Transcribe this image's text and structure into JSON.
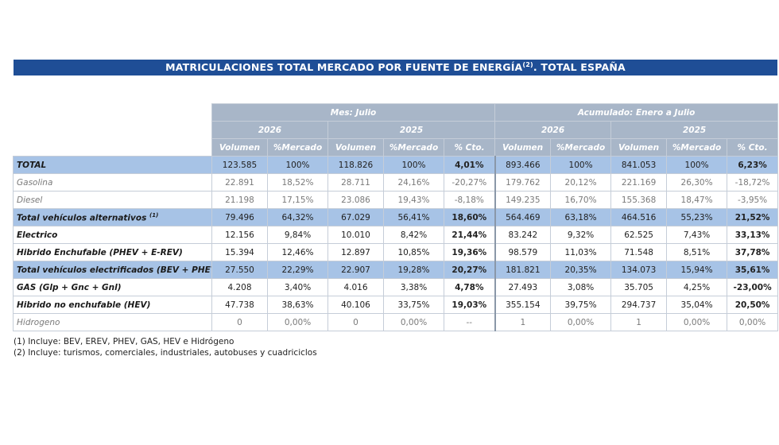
{
  "title": {
    "main": "MATRICULACIONES TOTAL MERCADO POR FUENTE DE ENERGÍA",
    "sup": "(2)",
    "suffix": ". TOTAL ESPAÑA"
  },
  "header": {
    "group_month": "Mes: Julio",
    "group_ytd": "Acumulado: Enero a Julio",
    "year_current": "2026",
    "year_prev": "2025",
    "col_volumen": "Volumen",
    "col_mercado": "%Mercado",
    "col_cto": "% Cto."
  },
  "rows": [
    {
      "label": "TOTAL",
      "sup": "",
      "style": "hl",
      "v1": "123.585",
      "m1": "100%",
      "v2": "118.826",
      "m2": "100%",
      "c1": "4,01%",
      "c1s": "pos",
      "v3": "893.466",
      "m3": "100%",
      "v4": "841.053",
      "m4": "100%",
      "c2": "6,23%",
      "c2s": "pos"
    },
    {
      "label": "Gasolina",
      "sup": "",
      "style": "plain",
      "v1": "22.891",
      "m1": "18,52%",
      "v2": "28.711",
      "m2": "24,16%",
      "c1": "-20,27%",
      "c1s": "neg",
      "v3": "179.762",
      "m3": "20,12%",
      "v4": "221.169",
      "m4": "26,30%",
      "c2": "-18,72%",
      "c2s": "neg"
    },
    {
      "label": "Diesel",
      "sup": "",
      "style": "plain",
      "v1": "21.198",
      "m1": "17,15%",
      "v2": "23.086",
      "m2": "19,43%",
      "c1": "-8,18%",
      "c1s": "neg",
      "v3": "149.235",
      "m3": "16,70%",
      "v4": "155.368",
      "m4": "18,47%",
      "c2": "-3,95%",
      "c2s": "neg"
    },
    {
      "label": "Total vehículos alternativos",
      "sup": "(1)",
      "style": "hl",
      "v1": "79.496",
      "m1": "64,32%",
      "v2": "67.029",
      "m2": "56,41%",
      "c1": "18,60%",
      "c1s": "pos",
      "v3": "564.469",
      "m3": "63,18%",
      "v4": "464.516",
      "m4": "55,23%",
      "c2": "21,52%",
      "c2s": "pos"
    },
    {
      "label": "Electrico",
      "sup": "",
      "style": "bold",
      "v1": "12.156",
      "m1": "9,84%",
      "v2": "10.010",
      "m2": "8,42%",
      "c1": "21,44%",
      "c1s": "pos",
      "v3": "83.242",
      "m3": "9,32%",
      "v4": "62.525",
      "m4": "7,43%",
      "c2": "33,13%",
      "c2s": "pos"
    },
    {
      "label": "Hibrido Enchufable (PHEV + E-REV)",
      "sup": "",
      "style": "bold",
      "v1": "15.394",
      "m1": "12,46%",
      "v2": "12.897",
      "m2": "10,85%",
      "c1": "19,36%",
      "c1s": "pos",
      "v3": "98.579",
      "m3": "11,03%",
      "v4": "71.548",
      "m4": "8,51%",
      "c2": "37,78%",
      "c2s": "pos"
    },
    {
      "label": "Total vehículos electrificados (BEV + PHEV)",
      "sup": "",
      "style": "hl",
      "v1": "27.550",
      "m1": "22,29%",
      "v2": "22.907",
      "m2": "19,28%",
      "c1": "20,27%",
      "c1s": "pos",
      "v3": "181.821",
      "m3": "20,35%",
      "v4": "134.073",
      "m4": "15,94%",
      "c2": "35,61%",
      "c2s": "pos"
    },
    {
      "label": "GAS (Glp + Gnc + Gnl)",
      "sup": "",
      "style": "bold",
      "v1": "4.208",
      "m1": "3,40%",
      "v2": "4.016",
      "m2": "3,38%",
      "c1": "4,78%",
      "c1s": "pos",
      "v3": "27.493",
      "m3": "3,08%",
      "v4": "35.705",
      "m4": "4,25%",
      "c2": "-23,00%",
      "c2s": "neg-b"
    },
    {
      "label": "Hibrido no enchufable (HEV)",
      "sup": "",
      "style": "bold",
      "v1": "47.738",
      "m1": "38,63%",
      "v2": "40.106",
      "m2": "33,75%",
      "c1": "19,03%",
      "c1s": "pos",
      "v3": "355.154",
      "m3": "39,75%",
      "v4": "294.737",
      "m4": "35,04%",
      "c2": "20,50%",
      "c2s": "pos"
    },
    {
      "label": "Hidrogeno",
      "sup": "",
      "style": "plain",
      "v1": "0",
      "m1": "0,00%",
      "v2": "0",
      "m2": "0,00%",
      "c1": "--",
      "c1s": "dash",
      "v3": "1",
      "m3": "0,00%",
      "v4": "1",
      "m4": "0,00%",
      "c2": "0,00%",
      "c2s": "plainc"
    }
  ],
  "notes": [
    "(1) Incluye: BEV, EREV, PHEV, GAS, HEV e Hidrógeno",
    "(2) Incluye: turismos, comerciales, industriales, autobuses y cuadriciclos"
  ]
}
